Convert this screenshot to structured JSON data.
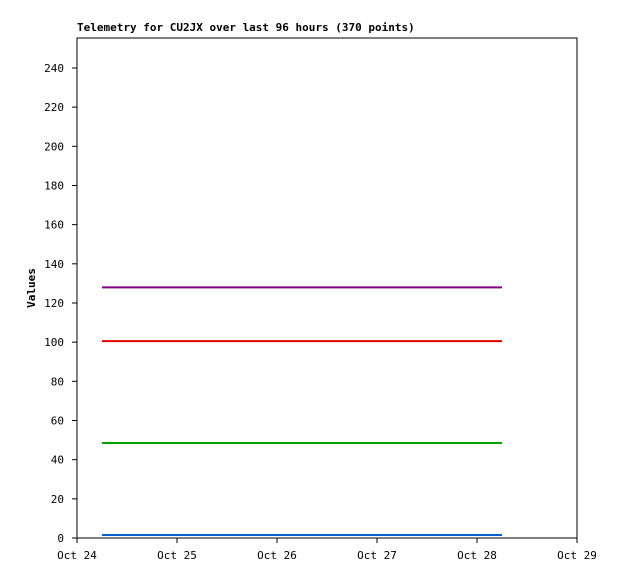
{
  "chart_data": {
    "type": "line",
    "title": "Telemetry for CU2JX over last 96 hours (370 points)",
    "y_label": "Values",
    "x": [
      24.25,
      28.25
    ],
    "series": [
      {
        "color": "#800080",
        "values": [
          128,
          128
        ]
      },
      {
        "color": "#e00000",
        "values": [
          100.5,
          100.5
        ]
      },
      {
        "color": "#00a000",
        "values": [
          48.5,
          48.5
        ]
      },
      {
        "color": "#0060d0",
        "values": [
          1.5,
          1.5
        ]
      }
    ],
    "xlim": [
      24,
      29
    ],
    "xticks": [
      {
        "value": 24,
        "label": "Oct 24"
      },
      {
        "value": 25,
        "label": "Oct 25"
      },
      {
        "value": 26,
        "label": "Oct 26"
      },
      {
        "value": 27,
        "label": "Oct 27"
      },
      {
        "value": 28,
        "label": "Oct 28"
      },
      {
        "value": 29,
        "label": "Oct 29"
      }
    ],
    "ylim": [
      0,
      255.3
    ],
    "yticks": [
      0,
      20,
      40,
      60,
      80,
      100,
      120,
      140,
      160,
      180,
      200,
      220,
      240
    ]
  }
}
